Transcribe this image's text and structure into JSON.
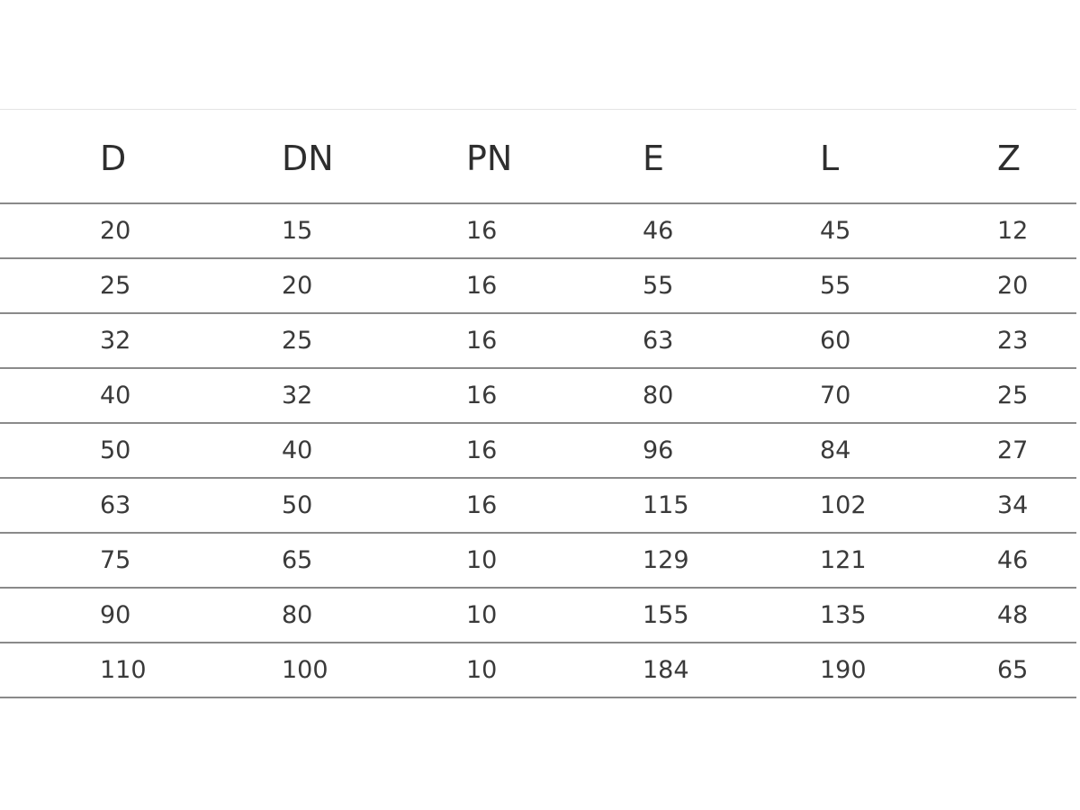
{
  "table": {
    "headers": [
      "D",
      "DN",
      "PN",
      "E",
      "L",
      "Z"
    ],
    "rows": [
      [
        "20",
        "15",
        "16",
        "46",
        "45",
        "12"
      ],
      [
        "25",
        "20",
        "16",
        "55",
        "55",
        "20"
      ],
      [
        "32",
        "25",
        "16",
        "63",
        "60",
        "23"
      ],
      [
        "40",
        "32",
        "16",
        "80",
        "70",
        "25"
      ],
      [
        "50",
        "40",
        "16",
        "96",
        "84",
        "27"
      ],
      [
        "63",
        "50",
        "16",
        "115",
        "102",
        "34"
      ],
      [
        "75",
        "65",
        "10",
        "129",
        "121",
        "46"
      ],
      [
        "90",
        "80",
        "10",
        "155",
        "135",
        "48"
      ],
      [
        "110",
        "100",
        "10",
        "184",
        "190",
        "65"
      ]
    ]
  }
}
